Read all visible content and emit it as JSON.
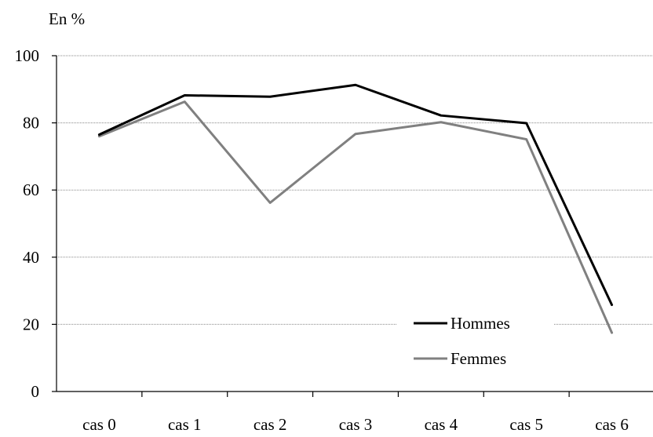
{
  "chart_data": {
    "type": "line",
    "title": "",
    "ylabel": "En %",
    "xlabel": "",
    "categories": [
      "cas 0",
      "cas 1",
      "cas 2",
      "cas 3",
      "cas 4",
      "cas 5",
      "cas 6"
    ],
    "ylim": [
      0,
      100
    ],
    "yticks": [
      0,
      20,
      40,
      60,
      80,
      100
    ],
    "grid": true,
    "legend_position": "bottom-right",
    "series": [
      {
        "name": "Hommes",
        "color": "#000000",
        "values": [
          76.5,
          88.2,
          87.8,
          91.3,
          82.2,
          79.9,
          25.8
        ]
      },
      {
        "name": "Femmes",
        "color": "#808080",
        "values": [
          76.0,
          86.3,
          56.2,
          76.7,
          80.2,
          75.1,
          17.5
        ]
      }
    ]
  }
}
